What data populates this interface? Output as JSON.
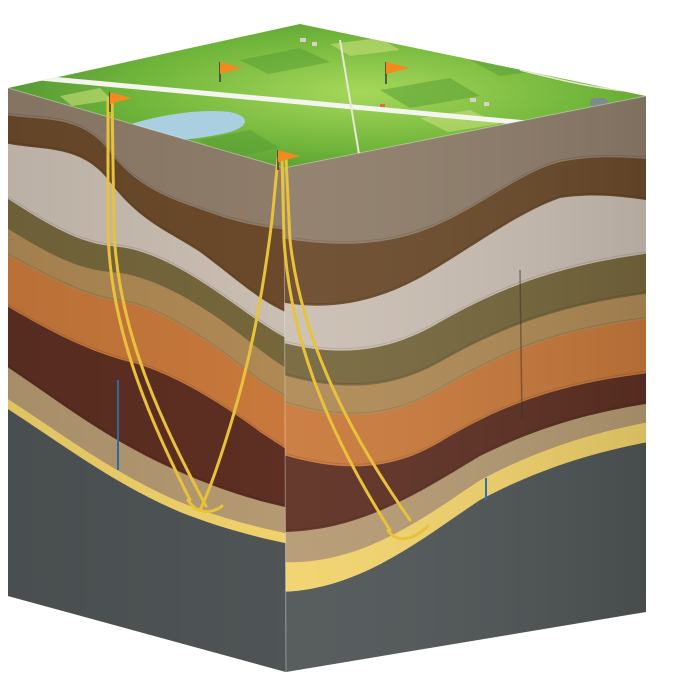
{
  "diagram": {
    "type": "geological-block",
    "surface": {
      "well_flags": 4,
      "flag_color": "#f28a1e",
      "land_color": "#7fbf3f",
      "water_color": "#a9cfe0",
      "road_color": "#f5f5f0"
    },
    "strata_top_to_bottom": [
      {
        "name": "topsoil",
        "color": "#8f7d6a"
      },
      {
        "name": "dark-brown-1",
        "color": "#6b4a2a"
      },
      {
        "name": "light-grey",
        "color": "#cbbfb3"
      },
      {
        "name": "olive-brown",
        "color": "#76673c"
      },
      {
        "name": "tan",
        "color": "#b08a55"
      },
      {
        "name": "orange-brown",
        "color": "#c9793b"
      },
      {
        "name": "dark-red-brown",
        "color": "#5e2f22"
      },
      {
        "name": "beige",
        "color": "#b59a72"
      },
      {
        "name": "yellow-reservoir",
        "color": "#f2d36b"
      },
      {
        "name": "basement-grey",
        "color": "#4f5556"
      }
    ],
    "wells": [
      {
        "name": "well-1",
        "paths": 2
      },
      {
        "name": "well-2",
        "paths": 3
      }
    ],
    "well_path_color": "#e8c23a"
  }
}
